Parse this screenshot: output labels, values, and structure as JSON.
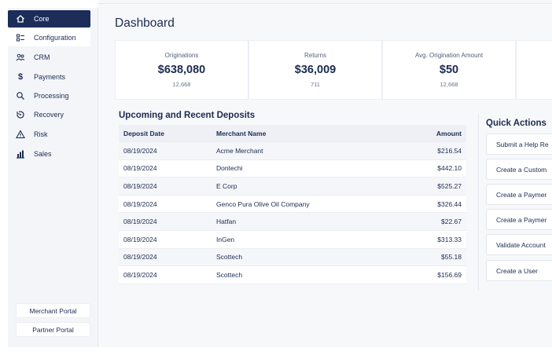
{
  "sidebar": {
    "items": [
      {
        "label": "Core",
        "icon": "home-icon",
        "state": "active"
      },
      {
        "label": "Configuration",
        "icon": "list-icon",
        "state": "sub"
      },
      {
        "label": "CRM",
        "icon": "users-icon",
        "state": ""
      },
      {
        "label": "Payments",
        "icon": "dollar-icon",
        "state": ""
      },
      {
        "label": "Processing",
        "icon": "magnify-icon",
        "state": ""
      },
      {
        "label": "Recovery",
        "icon": "recovery-icon",
        "state": ""
      },
      {
        "label": "Risk",
        "icon": "warning-icon",
        "state": ""
      },
      {
        "label": "Sales",
        "icon": "bar-chart-icon",
        "state": ""
      }
    ],
    "footer": {
      "merchant_portal": "Merchant Portal",
      "partner_portal": "Partner Portal"
    }
  },
  "main": {
    "title": "Dashboard",
    "stats": [
      {
        "label": "Originations",
        "value": "$638,080",
        "sub": "12,668"
      },
      {
        "label": "Returns",
        "value": "$36,009",
        "sub": "711"
      },
      {
        "label": "Avg. Origination Amount",
        "value": "$50",
        "sub": "12,668"
      }
    ],
    "deposits": {
      "title": "Upcoming and Recent Deposits",
      "columns": [
        "Deposit Date",
        "Merchant Name",
        "Amount"
      ],
      "rows": [
        [
          "08/19/2024",
          "Acme Merchant",
          "$216.54"
        ],
        [
          "08/19/2024",
          "Dontechi",
          "$442.10"
        ],
        [
          "08/19/2024",
          "E Corp",
          "$525.27"
        ],
        [
          "08/19/2024",
          "Genco Pura Olive Oil Company",
          "$326.44"
        ],
        [
          "08/19/2024",
          "Hatfan",
          "$22.67"
        ],
        [
          "08/19/2024",
          "InGen",
          "$313.33"
        ],
        [
          "08/19/2024",
          "Scottech",
          "$55.18"
        ],
        [
          "08/19/2024",
          "Scottech",
          "$156.69"
        ]
      ]
    },
    "quick_actions": {
      "title": "Quick Actions",
      "items": [
        "Submit a Help Re",
        "Create a Custom",
        "Create a Paymer",
        "Create a Paymer",
        "Validate Account",
        "Create a User"
      ]
    }
  },
  "colors": {
    "navy": "#1c2d5a",
    "text": "#1c2b52",
    "background": "#f7f8fa"
  }
}
